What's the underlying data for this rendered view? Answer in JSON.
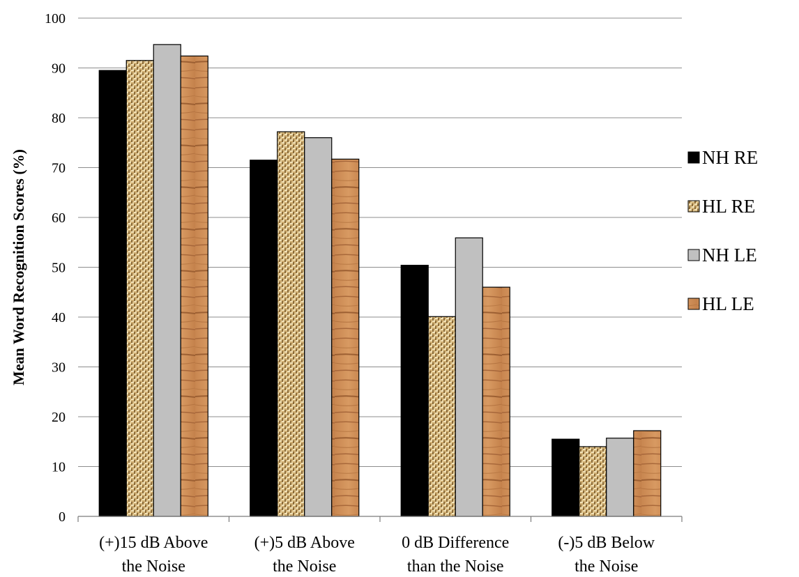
{
  "chart_data": {
    "type": "bar",
    "ylabel": "Mean Word Recognition Scores (%)",
    "xlabel": "",
    "ylim": [
      0,
      100
    ],
    "ytick_step": 10,
    "grid": "horizontal",
    "legend_position": "right",
    "categories": [
      [
        "(+)15 dB Above",
        "the Noise"
      ],
      [
        "(+)5 dB Above",
        "the Noise"
      ],
      [
        "0 dB Difference",
        "than the Noise"
      ],
      [
        "(-)5 dB Below",
        "the Noise"
      ]
    ],
    "series": [
      {
        "name": "NH RE",
        "fill": "solid-black",
        "color": "#000000",
        "values": [
          89.5,
          71.5,
          50.4,
          15.5
        ]
      },
      {
        "name": "HL RE",
        "fill": "burlap-texture",
        "color": "#c9a66b",
        "values": [
          91.5,
          77.2,
          40.1,
          14.0
        ]
      },
      {
        "name": "NH LE",
        "fill": "solid-gray",
        "color": "#c0c0c0",
        "values": [
          94.7,
          76.0,
          55.9,
          15.7
        ]
      },
      {
        "name": "HL LE",
        "fill": "wood-texture",
        "color": "#c98a55",
        "values": [
          92.4,
          71.7,
          46.0,
          17.2
        ]
      }
    ]
  }
}
